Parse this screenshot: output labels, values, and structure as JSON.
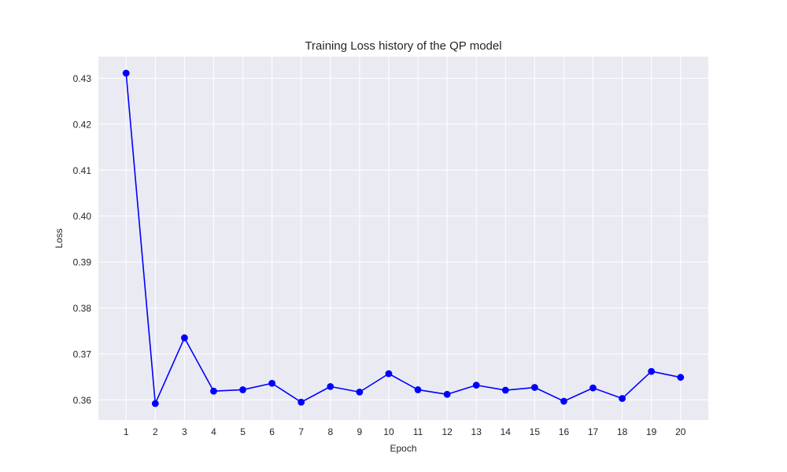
{
  "chart_data": {
    "type": "line",
    "title": "Training Loss history of the QP model",
    "xlabel": "Epoch",
    "ylabel": "Loss",
    "x": [
      1,
      2,
      3,
      4,
      5,
      6,
      7,
      8,
      9,
      10,
      11,
      12,
      13,
      14,
      15,
      16,
      17,
      18,
      19,
      20
    ],
    "series": [
      {
        "values": [
          0.4311,
          0.3592,
          0.3735,
          0.3619,
          0.3622,
          0.3636,
          0.3595,
          0.3629,
          0.3617,
          0.3657,
          0.3622,
          0.3612,
          0.3632,
          0.3621,
          0.3627,
          0.3597,
          0.3626,
          0.3603,
          0.3662,
          0.3649
        ],
        "color": "#0000ff"
      }
    ],
    "xticks": [
      1,
      2,
      3,
      4,
      5,
      6,
      7,
      8,
      9,
      10,
      11,
      12,
      13,
      14,
      15,
      16,
      17,
      18,
      19,
      20
    ],
    "yticks": [
      "0.36",
      "0.37",
      "0.38",
      "0.39",
      "0.40",
      "0.41",
      "0.42",
      "0.43"
    ],
    "xlim": [
      0.05,
      20.95
    ],
    "ylim": [
      0.3556,
      0.4347
    ],
    "grid": true,
    "background": "#eaeaf2",
    "grid_color": "#ffffff"
  }
}
